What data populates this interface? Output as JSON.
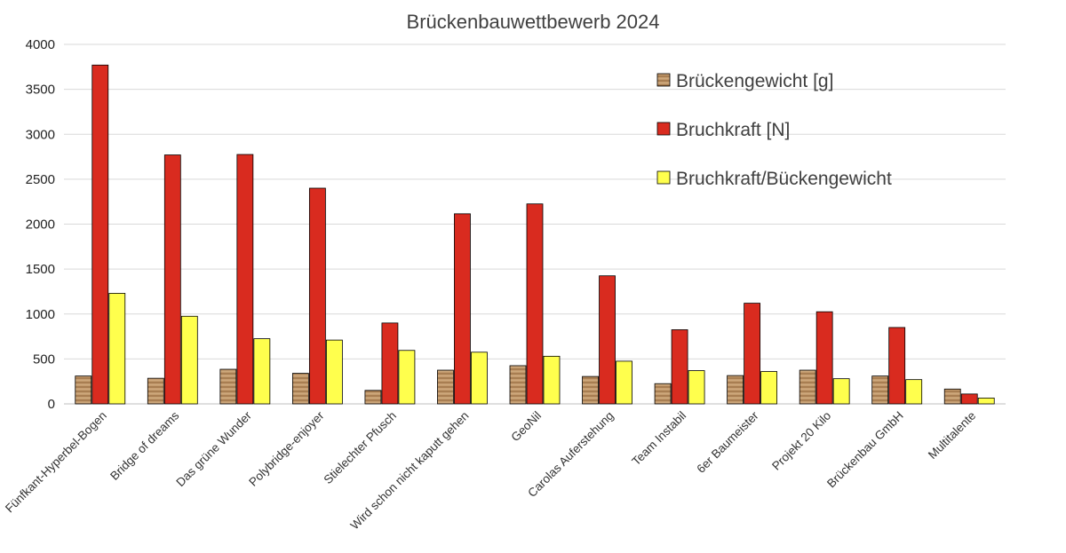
{
  "chart_data": {
    "type": "bar",
    "title": "Brückenbauwettbewerb 2024",
    "xlabel": "",
    "ylabel": "",
    "ylim": [
      0,
      4000
    ],
    "yticks": [
      0,
      500,
      1000,
      1500,
      2000,
      2500,
      3000,
      3500,
      4000
    ],
    "grid": true,
    "legend_position": "top-right",
    "categories": [
      "Fünfkant-Hyperbel-Bogen",
      "Bridge of dreams",
      "Das grüne Wunder",
      "Polybridge-enjoyer",
      "Stielechter Pfusch",
      "Wird schon nicht kaputt gehen",
      "GeoNil",
      "Carolas Auferstehung",
      "Team Instabil",
      "6er Baumeister",
      "Projekt 20 Kilo",
      "Brückenbau GmbH",
      "Multitalente"
    ],
    "series": [
      {
        "name": "Brückengewicht [g]",
        "color": "#b88a5c",
        "values": [
          310,
          285,
          385,
          340,
          150,
          375,
          425,
          305,
          225,
          315,
          375,
          310,
          165
        ]
      },
      {
        "name": "Bruchkraft [N]",
        "color": "#d92b1f",
        "values": [
          3770,
          2770,
          2775,
          2400,
          900,
          2115,
          2225,
          1425,
          825,
          1120,
          1025,
          850,
          110
        ]
      },
      {
        "name": "Bruchkraft/Bückengewicht",
        "color": "#ffff4d",
        "values": [
          1230,
          975,
          725,
          710,
          595,
          575,
          530,
          475,
          370,
          360,
          280,
          270,
          65
        ]
      }
    ]
  }
}
